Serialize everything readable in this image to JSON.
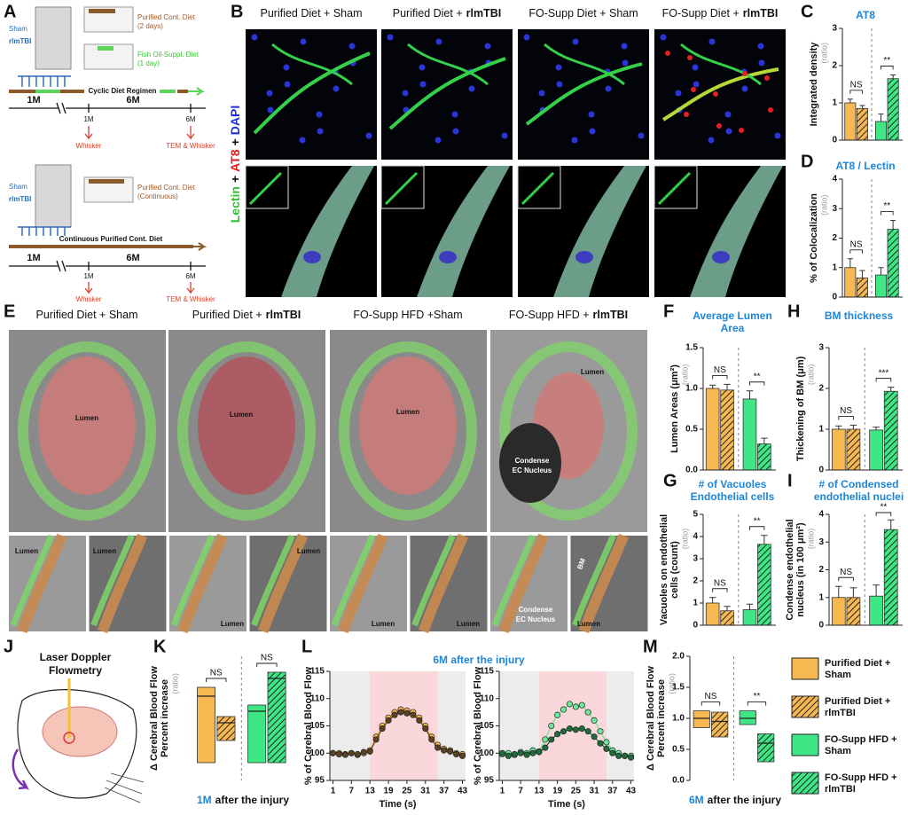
{
  "panel_a": {
    "label": "A",
    "cyclic": {
      "sham": "Sham",
      "tbi": "rlmTBI",
      "diet1": "Purified Cont. Diet",
      "diet1_note": "(2 days)",
      "diet2": "Fish Oil-Suppl. Diet",
      "diet2_note": "(1 day)",
      "regimen": "Cyclic Diet Regimen",
      "age1": "1M",
      "age2": "6M",
      "mark1": "1M",
      "mark2": "6M",
      "test1": "Whisker",
      "test2": "TEM & Whisker"
    },
    "continuous": {
      "sham": "Sham",
      "tbi": "rlmTBI",
      "diet": "Purified Cont. Diet",
      "diet_note": "(Continuous)",
      "regimen": "Continuous Purified Cont. Diet",
      "age1": "1M",
      "age2": "6M",
      "mark1": "1M",
      "mark2": "6M",
      "test1": "Whisker",
      "test2": "TEM & Whisker"
    }
  },
  "panel_b": {
    "label": "B",
    "columns": [
      {
        "text": "Purified Diet + Sham"
      },
      {
        "text": "Purified Diet +",
        "bold": "rlmTBI"
      },
      {
        "text": "FO-Supp Diet + Sham"
      },
      {
        "text": "FO-Supp Diet +",
        "bold": "rlmTBI"
      }
    ],
    "stain": {
      "lectin": "Lectin",
      "plus1": "+",
      "at8": "AT8",
      "plus2": "+",
      "dapi": "DAPI"
    }
  },
  "panel_e": {
    "label": "E",
    "columns": [
      {
        "text": "Purified Diet + Sham"
      },
      {
        "text": "Purified Diet +",
        "bold": "rlmTBI"
      },
      {
        "text": "FO-Supp HFD +Sham"
      },
      {
        "text": "FO-Supp HFD +",
        "bold": "rlmTBI"
      }
    ],
    "image_texts": [
      "Lumen",
      "Lumen",
      "Lumen",
      "Lumen",
      "Condense",
      "EC Nucleus",
      "Lumen",
      "Lumen",
      "Lumen",
      "Lumen",
      "Lumen",
      "Lumen",
      "Condense",
      "EC Nucleus",
      "Lumen",
      "BM"
    ]
  },
  "panel_j": {
    "label": "J",
    "title": [
      "Laser Doppler",
      "Flowmetry"
    ]
  },
  "panel_l": {
    "label": "L",
    "title": "6M after the injury"
  },
  "legend": {
    "items": [
      {
        "name": [
          "Purified Diet +",
          "Sham"
        ],
        "color": "#f7b852",
        "hatch": false
      },
      {
        "name": [
          "Purified Diet +",
          "rlmTBI"
        ],
        "color": "#f7b852",
        "hatch": true
      },
      {
        "name": [
          "FO-Supp HFD +",
          "Sham"
        ],
        "color": "#3ee684",
        "hatch": false
      },
      {
        "name": [
          "FO-Supp HFD +",
          "rlmTBI"
        ],
        "color": "#3ee684",
        "hatch": true
      }
    ]
  },
  "chart_data": [
    {
      "type": "bar",
      "label": "C",
      "title": [
        "AT8"
      ],
      "y_label": [
        "Integrated density"
      ],
      "y_unit": "(ratio)",
      "values": [
        1.0,
        0.85,
        0.5,
        1.65
      ],
      "errors": [
        0.1,
        0.08,
        0.2,
        0.1
      ],
      "ylim": [
        0,
        3
      ],
      "yticks": [
        0,
        1,
        2,
        3
      ],
      "annotations": [
        "NS",
        "**"
      ]
    },
    {
      "type": "bar",
      "label": "D",
      "title": [
        "AT8 / Lectin"
      ],
      "y_label": [
        "% of Colocalization"
      ],
      "y_unit": "(ratio)",
      "values": [
        1.0,
        0.65,
        0.75,
        2.3
      ],
      "errors": [
        0.3,
        0.25,
        0.25,
        0.3
      ],
      "ylim": [
        0,
        4
      ],
      "yticks": [
        0,
        1,
        2,
        3,
        4
      ],
      "annotations": [
        "NS",
        "**"
      ]
    },
    {
      "type": "bar",
      "label": "F",
      "title": [
        "Average Lumen",
        "Area"
      ],
      "y_label": [
        "Lumen Areas (μm²)"
      ],
      "y_unit": "(ratio)",
      "values": [
        1.0,
        0.98,
        0.87,
        0.32
      ],
      "errors": [
        0.04,
        0.07,
        0.1,
        0.07
      ],
      "ylim": [
        0,
        1.5
      ],
      "yticks": [
        {
          "value": 0,
          "label": "0.0"
        },
        0.5,
        {
          "value": 1,
          "label": "1.0"
        },
        1.5
      ],
      "annotations": [
        "NS",
        "**"
      ]
    },
    {
      "type": "bar",
      "label": "H",
      "title": [
        "BM thickness"
      ],
      "y_label": [
        "Thickening of BM (μm)"
      ],
      "y_unit": "(ratio)",
      "values": [
        1.0,
        1.0,
        0.98,
        1.93
      ],
      "errors": [
        0.08,
        0.1,
        0.07,
        0.1
      ],
      "ylim": [
        0,
        3
      ],
      "yticks": [
        0,
        1,
        2,
        3
      ],
      "annotations": [
        "NS",
        "***"
      ]
    },
    {
      "type": "bar",
      "label": "G",
      "title": [
        "# of Vacuoles",
        "Endothelial cells"
      ],
      "y_label": [
        "Vacuoles on endothelial",
        "cells (count)"
      ],
      "y_unit": "(ratio)",
      "values": [
        1.0,
        0.65,
        0.7,
        3.65
      ],
      "errors": [
        0.25,
        0.2,
        0.25,
        0.4
      ],
      "ylim": [
        0,
        5
      ],
      "yticks": [
        0,
        1,
        2,
        3,
        4,
        5
      ],
      "annotations": [
        "NS",
        "**"
      ]
    },
    {
      "type": "bar",
      "label": "I",
      "title": [
        "# of Condensed",
        "endothelial nuclei"
      ],
      "y_label": [
        "Condense endothelial",
        "nucleus (in 100 μm²)"
      ],
      "y_unit": "(ratio)",
      "values": [
        1.0,
        1.0,
        1.05,
        3.45
      ],
      "errors": [
        0.4,
        0.35,
        0.4,
        0.35
      ],
      "ylim": [
        0,
        4
      ],
      "yticks": [
        0,
        1,
        2,
        3,
        4
      ],
      "annotations": [
        "NS",
        "**"
      ]
    },
    {
      "type": "range",
      "label": "K",
      "y_label": [
        "Δ Cerebral Blood Flow",
        "Percent increase"
      ],
      "y_unit": "(ratio)",
      "low": [
        0.5,
        0.75,
        0.5,
        0.5
      ],
      "high": [
        1.35,
        1.02,
        1.15,
        1.52
      ],
      "mean": [
        1.25,
        0.95,
        1.08,
        1.45
      ],
      "ylim": [
        0.3,
        1.7
      ],
      "annotations": [
        "NS",
        "NS"
      ],
      "caption": {
        "em": "1M",
        "text": "after the injury"
      }
    },
    {
      "type": "range",
      "label": "M",
      "y_label": [
        "Δ Cerebral Blood Flow",
        "Percent increase"
      ],
      "y_unit": "(ratio)",
      "low": [
        0.85,
        0.7,
        0.9,
        0.3
      ],
      "high": [
        1.12,
        1.1,
        1.12,
        0.75
      ],
      "mean": [
        1.0,
        0.95,
        1.0,
        0.6
      ],
      "ylim": [
        0,
        2
      ],
      "yticks": [
        {
          "value": 0,
          "label": "0.0"
        },
        0.5,
        {
          "value": 1,
          "label": "1.0"
        },
        1.5,
        {
          "value": 2,
          "label": "2.0"
        }
      ],
      "annotations": [
        "NS",
        "**"
      ],
      "caption": {
        "em": "6M",
        "text": "after the injury"
      }
    },
    {
      "type": "line",
      "y_label": [
        "% of Cerebral Blood Flow"
      ],
      "x_label": "Time (s)",
      "x": [
        1,
        3,
        5,
        7,
        9,
        11,
        13,
        15,
        17,
        19,
        21,
        23,
        25,
        27,
        29,
        31,
        33,
        35,
        37,
        39,
        41,
        43
      ],
      "xlim": [
        0,
        44
      ],
      "xticks": [
        1,
        7,
        13,
        19,
        25,
        31,
        37,
        43
      ],
      "ylim": [
        95,
        115
      ],
      "yticks": [
        95,
        100,
        105,
        110,
        115
      ],
      "highlight": [
        13,
        35
      ],
      "series": [
        {
          "color": "#f7b852",
          "values": [
            100,
            100,
            99.8,
            100,
            99.7,
            100,
            100.5,
            103,
            105,
            106.5,
            107.5,
            108,
            107.8,
            107.5,
            106.5,
            105,
            103,
            101.5,
            100.8,
            100.5,
            100,
            99.8
          ]
        },
        {
          "color": "#5a4220",
          "values": [
            100,
            99.8,
            99.7,
            100,
            99.8,
            100.2,
            100.3,
            102.5,
            104.5,
            106,
            107,
            107.5,
            107.3,
            107,
            106,
            104.5,
            102.5,
            101,
            100.5,
            100.3,
            99.8,
            99.5
          ]
        }
      ]
    },
    {
      "type": "line",
      "y_label": [
        "% of Cerebral Blood Flow"
      ],
      "x_label": "Time (s)",
      "x": [
        1,
        3,
        5,
        7,
        9,
        11,
        13,
        15,
        17,
        19,
        21,
        23,
        25,
        27,
        29,
        31,
        33,
        35,
        37,
        39,
        41,
        43
      ],
      "xlim": [
        0,
        44
      ],
      "xticks": [
        1,
        7,
        13,
        19,
        25,
        31,
        37,
        43
      ],
      "ylim": [
        95,
        115
      ],
      "yticks": [
        95,
        100,
        105,
        110,
        115
      ],
      "highlight": [
        13,
        35
      ],
      "series": [
        {
          "color": "#6ee89a",
          "values": [
            99.8,
            100,
            99.7,
            100.2,
            100,
            100.5,
            100.3,
            102.5,
            105,
            107,
            108,
            109,
            108.5,
            108.8,
            107.5,
            106,
            104,
            102,
            100.5,
            100,
            99.5,
            99.5
          ]
        },
        {
          "color": "#1f6b3a",
          "values": [
            100,
            99.5,
            99.8,
            100,
            99.7,
            100,
            100.2,
            101,
            102.5,
            103.5,
            104,
            104.5,
            104.3,
            104.5,
            104,
            103,
            101.8,
            100.8,
            100,
            99.5,
            99.5,
            99.2
          ]
        }
      ]
    }
  ]
}
